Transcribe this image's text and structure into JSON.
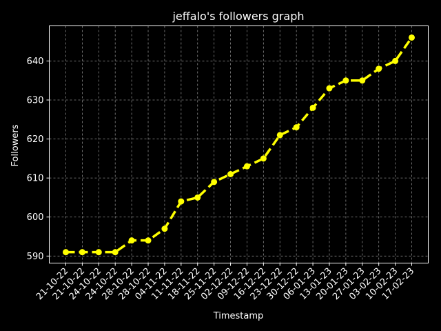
{
  "chart_data": {
    "type": "line",
    "title": "jeffalo's followers graph",
    "xlabel": "Timestamp",
    "ylabel": "Followers",
    "categories": [
      "21-10-22",
      "21-10-22",
      "24-10-22",
      "24-10-22",
      "28-10-22",
      "28-10-22",
      "04-11-22",
      "11-11-22",
      "18-11-22",
      "25-11-22",
      "02-12-22",
      "09-12-22",
      "16-12-22",
      "23-12-22",
      "30-12-22",
      "06-01-23",
      "13-01-23",
      "20-01-23",
      "27-01-23",
      "03-02-23",
      "10-02-23",
      "17-02-23"
    ],
    "series": [
      {
        "values": [
          591,
          591,
          591,
          591,
          594,
          594,
          597,
          604,
          605,
          609,
          611,
          613,
          615,
          621,
          623,
          628,
          633,
          635,
          635,
          638,
          640,
          646
        ]
      }
    ],
    "yticks": [
      590,
      600,
      610,
      620,
      630,
      640
    ],
    "ylim": [
      588.2,
      649.0
    ],
    "grid": true,
    "line_style": "dashed",
    "marker": "circle",
    "colors": {
      "background": "#000000",
      "line": "#ffff00",
      "grid": "#888888",
      "text": "#ffffff",
      "axes": "#ffffff"
    }
  }
}
